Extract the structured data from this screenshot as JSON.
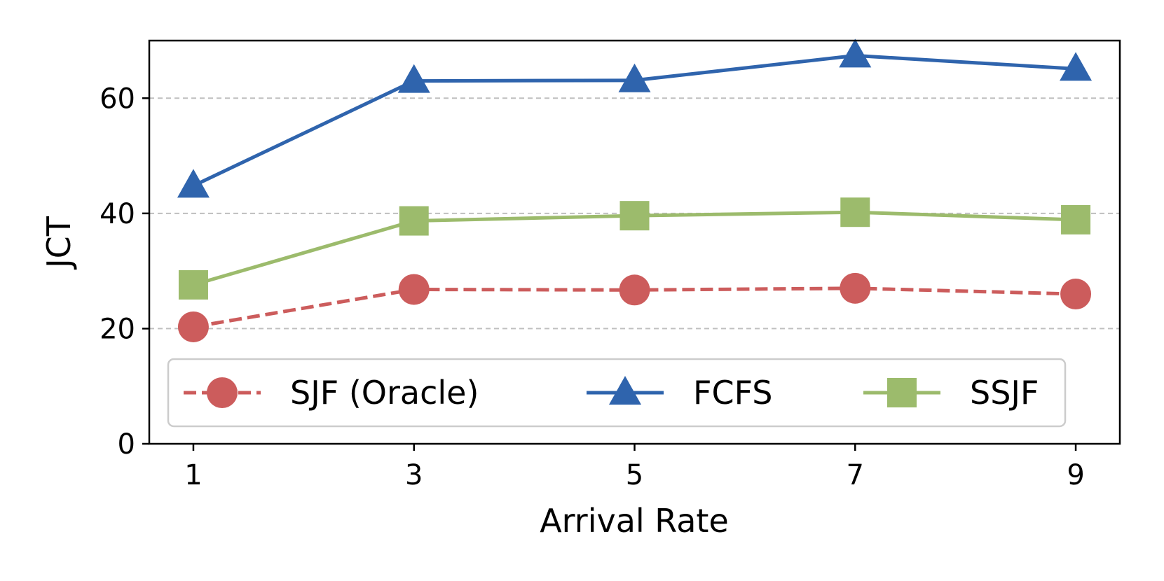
{
  "chart_data": {
    "type": "line",
    "title": "",
    "xlabel": "Arrival Rate",
    "ylabel": "JCT",
    "x": [
      1,
      3,
      5,
      7,
      9
    ],
    "xticks": [
      "1",
      "3",
      "5",
      "7",
      "9"
    ],
    "yticks": [
      "0",
      "20",
      "40",
      "60"
    ],
    "xlim": [
      0.6,
      9.4
    ],
    "ylim": [
      0,
      70
    ],
    "grid": "horizontal dashed",
    "legend_position": "lower-center",
    "series": [
      {
        "name": "SJF (Oracle)",
        "values": [
          20.3,
          26.8,
          26.7,
          27.0,
          26.0
        ],
        "color": "#cc5c5c",
        "marker": "circle",
        "linestyle": "dashed"
      },
      {
        "name": "FCFS",
        "values": [
          44.8,
          63.0,
          63.1,
          67.4,
          65.1
        ],
        "color": "#2f64ad",
        "marker": "triangle",
        "linestyle": "solid"
      },
      {
        "name": "SSJF",
        "values": [
          27.6,
          38.7,
          39.6,
          40.2,
          38.9
        ],
        "color": "#9cbb6c",
        "marker": "square",
        "linestyle": "solid"
      }
    ]
  }
}
